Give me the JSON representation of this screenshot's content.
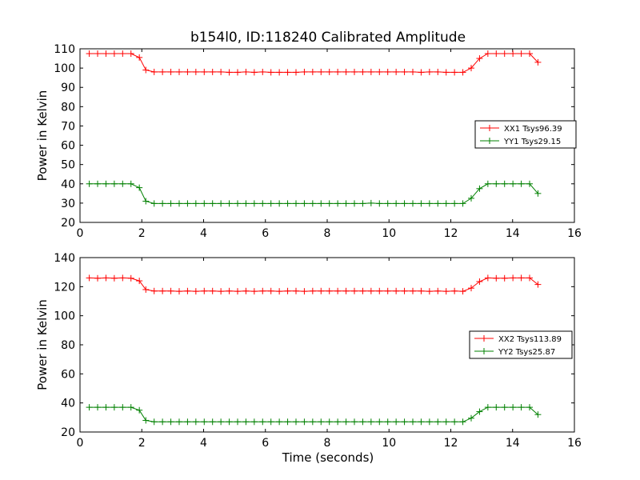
{
  "chart_data": [
    {
      "type": "line",
      "title": "b154l0, ID:118240 Calibrated Amplitude",
      "xlabel": "",
      "ylabel": "Power in Kelvin",
      "xlim": [
        0,
        16
      ],
      "ylim": [
        20,
        110
      ],
      "xticks": [
        "0",
        "2",
        "4",
        "6",
        "8",
        "10",
        "12",
        "14",
        "16"
      ],
      "yticks": [
        "20",
        "30",
        "40",
        "50",
        "60",
        "70",
        "80",
        "90",
        "100",
        "110"
      ],
      "grid": false,
      "legend": "center-right",
      "x": [
        0.3,
        0.57,
        0.84,
        1.11,
        1.38,
        1.65,
        1.92,
        2.13,
        2.4,
        2.67,
        2.94,
        3.21,
        3.48,
        3.75,
        4.02,
        4.29,
        4.56,
        4.83,
        5.1,
        5.37,
        5.64,
        5.91,
        6.18,
        6.45,
        6.72,
        6.99,
        7.26,
        7.53,
        7.8,
        8.07,
        8.34,
        8.61,
        8.88,
        9.15,
        9.42,
        9.69,
        9.96,
        10.23,
        10.5,
        10.77,
        11.04,
        11.31,
        11.58,
        11.85,
        12.12,
        12.39,
        12.66,
        12.93,
        13.2,
        13.47,
        13.74,
        14.01,
        14.28,
        14.55,
        14.82
      ],
      "series": [
        {
          "name": "XX1 Tsys96.39",
          "color": "#ff0000",
          "values": [
            107.5,
            107.5,
            107.5,
            107.5,
            107.5,
            107.5,
            105.5,
            99,
            98,
            98,
            98,
            98,
            98,
            98,
            98,
            98,
            98,
            97.8,
            97.8,
            98,
            97.8,
            98,
            97.8,
            97.8,
            97.8,
            97.8,
            98,
            98,
            98,
            98,
            98,
            98,
            98,
            98,
            98,
            98,
            98,
            98,
            98,
            98,
            97.8,
            98,
            98,
            97.8,
            97.8,
            97.8,
            100,
            105,
            107.5,
            107.5,
            107.5,
            107.5,
            107.5,
            107.5,
            103
          ]
        },
        {
          "name": "YY1 Tsys29.15",
          "color": "#008000",
          "values": [
            40,
            40,
            40,
            40,
            40,
            40,
            38,
            31,
            29.8,
            29.8,
            29.8,
            29.8,
            29.8,
            29.8,
            29.8,
            29.8,
            29.8,
            29.8,
            29.8,
            29.8,
            29.8,
            29.8,
            29.8,
            29.8,
            29.8,
            29.8,
            29.8,
            29.8,
            29.8,
            29.8,
            29.8,
            29.8,
            29.8,
            29.8,
            30,
            29.8,
            29.8,
            29.8,
            29.8,
            29.8,
            29.8,
            29.8,
            29.8,
            29.8,
            29.8,
            29.8,
            32.5,
            37.5,
            40,
            40,
            40,
            40,
            40,
            40,
            35
          ]
        }
      ]
    },
    {
      "type": "line",
      "title": "",
      "xlabel": "Time (seconds)",
      "ylabel": "Power in Kelvin",
      "xlim": [
        0,
        16
      ],
      "ylim": [
        20,
        140
      ],
      "xticks": [
        "0",
        "2",
        "4",
        "6",
        "8",
        "10",
        "12",
        "14",
        "16"
      ],
      "yticks": [
        "20",
        "40",
        "60",
        "80",
        "100",
        "120",
        "140"
      ],
      "grid": false,
      "legend": "center-right",
      "x": [
        0.3,
        0.57,
        0.84,
        1.11,
        1.38,
        1.65,
        1.92,
        2.13,
        2.4,
        2.67,
        2.94,
        3.21,
        3.48,
        3.75,
        4.02,
        4.29,
        4.56,
        4.83,
        5.1,
        5.37,
        5.64,
        5.91,
        6.18,
        6.45,
        6.72,
        6.99,
        7.26,
        7.53,
        7.8,
        8.07,
        8.34,
        8.61,
        8.88,
        9.15,
        9.42,
        9.69,
        9.96,
        10.23,
        10.5,
        10.77,
        11.04,
        11.31,
        11.58,
        11.85,
        12.12,
        12.39,
        12.66,
        12.93,
        13.2,
        13.47,
        13.74,
        14.01,
        14.28,
        14.55,
        14.82
      ],
      "series": [
        {
          "name": "XX2 Tsys113.89",
          "color": "#ff0000",
          "values": [
            126,
            125.8,
            126,
            125.8,
            126,
            125.8,
            124,
            118,
            117,
            117,
            117,
            116.8,
            117,
            116.8,
            117,
            117,
            116.8,
            117,
            116.8,
            117,
            116.8,
            117,
            117,
            116.8,
            117,
            117,
            116.8,
            117,
            117,
            117,
            117,
            117,
            117,
            117,
            117,
            117,
            117,
            117,
            117,
            117,
            117,
            116.8,
            117,
            116.8,
            117,
            116.8,
            119,
            123.5,
            126,
            125.8,
            125.8,
            126,
            126,
            126,
            121.5
          ]
        },
        {
          "name": "YY2 Tsys25.87",
          "color": "#008000",
          "values": [
            37,
            37,
            37,
            37,
            37,
            37,
            35,
            28,
            27,
            27,
            27,
            27,
            27,
            27,
            27,
            27,
            27,
            27,
            27,
            27,
            27,
            27,
            27,
            27,
            27,
            27,
            27,
            27,
            27,
            27,
            27,
            27,
            27,
            27,
            27,
            27,
            27,
            27,
            27,
            27,
            27,
            27,
            27,
            27,
            27,
            27,
            29.5,
            34,
            37,
            37,
            37,
            37,
            37,
            37,
            32
          ]
        }
      ]
    }
  ]
}
